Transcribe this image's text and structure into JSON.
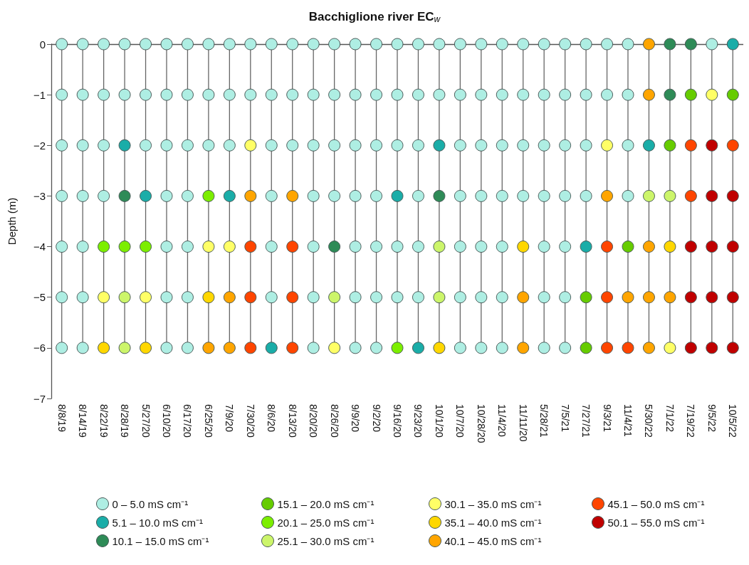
{
  "chart_data": {
    "type": "scatter",
    "title": "Bacchiglione river EC$_{w}$",
    "ylabel": "Depth (m)",
    "categories": [
      "8/8/19",
      "8/14/19",
      "8/22/19",
      "8/28/19",
      "5/27/20",
      "6/10/20",
      "6/17/20",
      "6/25/20",
      "7/9/20",
      "7/30/20",
      "8/6/20",
      "8/13/20",
      "8/20/20",
      "8/26/20",
      "9/9/20",
      "9/2/20",
      "9/16/20",
      "9/23/20",
      "10/1/20",
      "10/7/20",
      "10/28/20",
      "11/4/20",
      "11/11/20",
      "5/28/21",
      "7/5/21",
      "7/27/21",
      "9/3/21",
      "11/4/21",
      "5/30/22",
      "7/1/22",
      "7/19/22",
      "9/5/22",
      "10/5/22"
    ],
    "ylim": [
      -7,
      0
    ],
    "yticks": [
      0,
      -1,
      -2,
      -3,
      -4,
      -5,
      -6,
      -7
    ],
    "ref_lines": [
      {
        "axis": "y",
        "value": 0,
        "color": "#555555"
      }
    ],
    "legend": "bottom",
    "marker": "circle",
    "grid": "x",
    "series": [
      {
        "name": "0 – 5.0 mS cm⁻¹",
        "color": "#aeeee3",
        "x": [
          "8/8/19",
          "8/8/19",
          "8/8/19",
          "8/8/19",
          "8/8/19",
          "8/8/19",
          "8/8/19",
          "8/14/19",
          "8/14/19",
          "8/14/19",
          "8/14/19",
          "8/14/19",
          "8/14/19",
          "8/14/19",
          "8/22/19",
          "8/22/19",
          "8/22/19",
          "8/22/19",
          "8/28/19",
          "8/28/19",
          "5/27/20",
          "5/27/20",
          "5/27/20",
          "6/10/20",
          "6/10/20",
          "6/10/20",
          "6/10/20",
          "6/10/20",
          "6/10/20",
          "6/10/20",
          "6/17/20",
          "6/17/20",
          "6/17/20",
          "6/17/20",
          "6/17/20",
          "6/17/20",
          "6/17/20",
          "6/25/20",
          "6/25/20",
          "6/25/20",
          "7/9/20",
          "7/9/20",
          "7/9/20",
          "7/30/20",
          "7/30/20",
          "8/6/20",
          "8/6/20",
          "8/6/20",
          "8/6/20",
          "8/6/20",
          "8/6/20",
          "8/13/20",
          "8/13/20",
          "8/13/20",
          "8/20/20",
          "8/20/20",
          "8/20/20",
          "8/20/20",
          "8/20/20",
          "8/20/20",
          "8/20/20",
          "8/26/20",
          "8/26/20",
          "8/26/20",
          "8/26/20",
          "9/9/20",
          "9/9/20",
          "9/9/20",
          "9/9/20",
          "9/9/20",
          "9/9/20",
          "9/9/20",
          "9/2/20",
          "9/2/20",
          "9/2/20",
          "9/2/20",
          "9/2/20",
          "9/2/20",
          "9/2/20",
          "9/16/20",
          "9/16/20",
          "9/16/20",
          "9/16/20",
          "9/16/20",
          "9/23/20",
          "9/23/20",
          "9/23/20",
          "9/23/20",
          "9/23/20",
          "9/23/20",
          "10/1/20",
          "10/1/20",
          "10/7/20",
          "10/7/20",
          "10/7/20",
          "10/7/20",
          "10/7/20",
          "10/7/20",
          "10/7/20",
          "10/28/20",
          "10/28/20",
          "10/28/20",
          "10/28/20",
          "10/28/20",
          "10/28/20",
          "10/28/20",
          "11/4/20",
          "11/4/20",
          "11/4/20",
          "11/4/20",
          "11/4/20",
          "11/4/20",
          "11/4/20",
          "11/11/20",
          "11/11/20",
          "11/11/20",
          "11/11/20",
          "5/28/21",
          "5/28/21",
          "5/28/21",
          "5/28/21",
          "5/28/21",
          "5/28/21",
          "5/28/21",
          "7/5/21",
          "7/5/21",
          "7/5/21",
          "7/5/21",
          "7/5/21",
          "7/5/21",
          "7/5/21",
          "7/27/21",
          "7/27/21",
          "7/27/21",
          "7/27/21",
          "9/3/21",
          "9/3/21",
          "11/4/21",
          "11/4/21",
          "11/4/21",
          "11/4/21",
          "9/5/22"
        ],
        "values": [
          0,
          -1,
          -2,
          -3,
          -4,
          -5,
          -6,
          0,
          -1,
          -2,
          -3,
          -4,
          -5,
          -6,
          0,
          -1,
          -2,
          -3,
          0,
          -1,
          0,
          -1,
          -2,
          0,
          -1,
          -2,
          -3,
          -4,
          -5,
          -6,
          0,
          -1,
          -2,
          -3,
          -4,
          -5,
          -6,
          0,
          -1,
          -2,
          0,
          -1,
          -2,
          0,
          -1,
          0,
          -1,
          -2,
          -3,
          -4,
          -5,
          0,
          -1,
          -2,
          0,
          -1,
          -2,
          -3,
          -4,
          -5,
          -6,
          0,
          -1,
          -2,
          -3,
          0,
          -1,
          -2,
          -3,
          -4,
          -5,
          -6,
          0,
          -1,
          -2,
          -3,
          -4,
          -5,
          -6,
          0,
          -1,
          -2,
          -4,
          -5,
          0,
          -1,
          -2,
          -3,
          -4,
          -5,
          0,
          -1,
          0,
          -1,
          -2,
          -3,
          -4,
          -5,
          -6,
          0,
          -1,
          -2,
          -3,
          -4,
          -5,
          -6,
          0,
          -1,
          -2,
          -3,
          -4,
          -5,
          -6,
          0,
          -1,
          -2,
          -3,
          0,
          -1,
          -2,
          -3,
          -4,
          -5,
          -6,
          0,
          -1,
          -2,
          -3,
          -4,
          -5,
          -6,
          0,
          -1,
          -2,
          -3,
          0,
          -1,
          0,
          -1,
          -2,
          -3,
          0
        ]
      },
      {
        "name": "5.1 – 10.0 mS cm⁻¹",
        "color": "#1aada8",
        "x": [
          "8/28/19",
          "5/27/20",
          "7/9/20",
          "8/6/20",
          "9/16/20",
          "9/23/20",
          "10/1/20",
          "7/27/21",
          "5/30/22",
          "10/5/22"
        ],
        "values": [
          -2,
          -3,
          -3,
          -6,
          -3,
          -6,
          -2,
          -4,
          -2,
          0
        ]
      },
      {
        "name": "10.1 – 15.0 mS cm⁻¹",
        "color": "#2e8b57",
        "x": [
          "8/28/19",
          "8/26/20",
          "10/1/20",
          "7/1/22",
          "7/1/22",
          "7/19/22"
        ],
        "values": [
          -3,
          -4,
          -3,
          0,
          -1,
          0
        ]
      },
      {
        "name": "15.1 – 20.0 mS cm⁻¹",
        "color": "#66cc00",
        "x": [
          "7/27/21",
          "7/27/21",
          "11/4/21",
          "7/1/22",
          "7/19/22",
          "10/5/22"
        ],
        "values": [
          -5,
          -6,
          -4,
          -2,
          -1,
          -1
        ]
      },
      {
        "name": "20.1 – 25.0 mS cm⁻¹",
        "color": "#7cee00",
        "x": [
          "8/22/19",
          "8/28/19",
          "5/27/20",
          "6/25/20",
          "9/16/20"
        ],
        "values": [
          -4,
          -4,
          -4,
          -3,
          -6
        ]
      },
      {
        "name": "25.1 – 30.0 mS cm⁻¹",
        "color": "#ccf56a",
        "x": [
          "8/28/19",
          "8/28/19",
          "8/26/20",
          "10/1/20",
          "10/1/20",
          "5/30/22",
          "7/1/22"
        ],
        "values": [
          -5,
          -6,
          -5,
          -4,
          -5,
          -3,
          -3
        ]
      },
      {
        "name": "30.1 – 35.0 mS cm⁻¹",
        "color": "#ffff66",
        "x": [
          "8/22/19",
          "5/27/20",
          "6/25/20",
          "7/9/20",
          "7/30/20",
          "8/26/20",
          "9/3/21",
          "7/1/22",
          "9/5/22"
        ],
        "values": [
          -5,
          -5,
          -4,
          -4,
          -2,
          -6,
          -2,
          -6,
          -1
        ]
      },
      {
        "name": "35.1 – 40.0 mS cm⁻¹",
        "color": "#ffd700",
        "x": [
          "8/22/19",
          "5/27/20",
          "6/25/20",
          "10/1/20",
          "11/11/20",
          "7/1/22"
        ],
        "values": [
          -6,
          -6,
          -5,
          -6,
          -4,
          -4
        ]
      },
      {
        "name": "40.1 – 45.0 mS cm⁻¹",
        "color": "#ffa500",
        "x": [
          "6/25/20",
          "7/9/20",
          "7/9/20",
          "7/30/20",
          "8/13/20",
          "11/11/20",
          "11/11/20",
          "9/3/21",
          "11/4/21",
          "5/30/22",
          "5/30/22",
          "5/30/22",
          "5/30/22",
          "5/30/22",
          "7/1/22"
        ],
        "values": [
          -6,
          -5,
          -6,
          -3,
          -3,
          -5,
          -6,
          -3,
          -5,
          0,
          -1,
          -4,
          -5,
          -6,
          -5
        ]
      },
      {
        "name": "45.1 – 50.0 mS cm⁻¹",
        "color": "#ff4500",
        "x": [
          "7/30/20",
          "7/30/20",
          "7/30/20",
          "8/13/20",
          "8/13/20",
          "8/13/20",
          "9/3/21",
          "9/3/21",
          "9/3/21",
          "11/4/21",
          "7/19/22",
          "7/19/22",
          "10/5/22"
        ],
        "values": [
          -4,
          -5,
          -6,
          -4,
          -5,
          -6,
          -4,
          -5,
          -6,
          -6,
          -2,
          -3,
          -2
        ]
      },
      {
        "name": "50.1 – 55.0 mS cm⁻¹",
        "color": "#c00000",
        "x": [
          "7/19/22",
          "7/19/22",
          "7/19/22",
          "9/5/22",
          "9/5/22",
          "9/5/22",
          "9/5/22",
          "9/5/22",
          "10/5/22",
          "10/5/22",
          "10/5/22",
          "10/5/22"
        ],
        "values": [
          -4,
          -5,
          -6,
          -2,
          -3,
          -4,
          -5,
          -6,
          -3,
          -4,
          -5,
          -6
        ]
      }
    ]
  }
}
